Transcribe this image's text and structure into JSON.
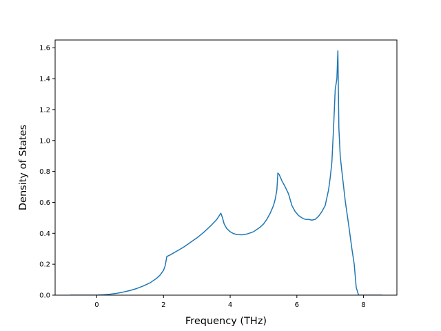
{
  "chart_data": {
    "type": "line",
    "title": "",
    "xlabel": "Frequency (THz)",
    "ylabel": "Density of States",
    "xlim": [
      -1.25,
      9.0
    ],
    "ylim": [
      0.0,
      1.65
    ],
    "xticks": [
      0,
      2,
      4,
      6,
      8
    ],
    "xtick_labels": [
      "0",
      "2",
      "4",
      "6",
      "8"
    ],
    "yticks": [
      0.0,
      0.2,
      0.4,
      0.6,
      0.8,
      1.0,
      1.2,
      1.4,
      1.6
    ],
    "ytick_labels": [
      "0.0",
      "0.2",
      "0.4",
      "0.6",
      "0.8",
      "1.0",
      "1.2",
      "1.4",
      "1.6"
    ],
    "grid": false,
    "line_color": "#1f77b4",
    "series": [
      {
        "x": [
          -0.8,
          0.0,
          0.2,
          0.4,
          0.6,
          0.8,
          1.0,
          1.2,
          1.4,
          1.6,
          1.8,
          1.9,
          2.0,
          2.05,
          2.1,
          2.2,
          2.4,
          2.6,
          2.8,
          3.0,
          3.2,
          3.4,
          3.6,
          3.72,
          3.77,
          3.82,
          3.9,
          4.0,
          4.1,
          4.2,
          4.35,
          4.5,
          4.7,
          4.9,
          5.0,
          5.1,
          5.2,
          5.3,
          5.35,
          5.4,
          5.43,
          5.47,
          5.55,
          5.65,
          5.75,
          5.85,
          5.95,
          6.05,
          6.15,
          6.25,
          6.35,
          6.45,
          6.55,
          6.65,
          6.75,
          6.85,
          6.95,
          7.0,
          7.05,
          7.1,
          7.15,
          7.2,
          7.23,
          7.26,
          7.3,
          7.35,
          7.45,
          7.55,
          7.65,
          7.72,
          7.78,
          7.85,
          8.1,
          8.55
        ],
        "y": [
          0.0,
          0.0,
          0.002,
          0.006,
          0.012,
          0.02,
          0.03,
          0.043,
          0.06,
          0.08,
          0.11,
          0.13,
          0.16,
          0.19,
          0.25,
          0.26,
          0.285,
          0.31,
          0.34,
          0.37,
          0.405,
          0.445,
          0.49,
          0.53,
          0.5,
          0.46,
          0.43,
          0.41,
          0.398,
          0.392,
          0.39,
          0.395,
          0.41,
          0.44,
          0.46,
          0.49,
          0.53,
          0.58,
          0.62,
          0.68,
          0.79,
          0.78,
          0.74,
          0.7,
          0.655,
          0.58,
          0.54,
          0.515,
          0.5,
          0.49,
          0.49,
          0.485,
          0.49,
          0.51,
          0.54,
          0.58,
          0.68,
          0.76,
          0.86,
          1.08,
          1.33,
          1.4,
          1.58,
          1.08,
          0.9,
          0.8,
          0.61,
          0.46,
          0.3,
          0.2,
          0.05,
          0.0,
          0.0,
          0.0
        ]
      }
    ]
  }
}
